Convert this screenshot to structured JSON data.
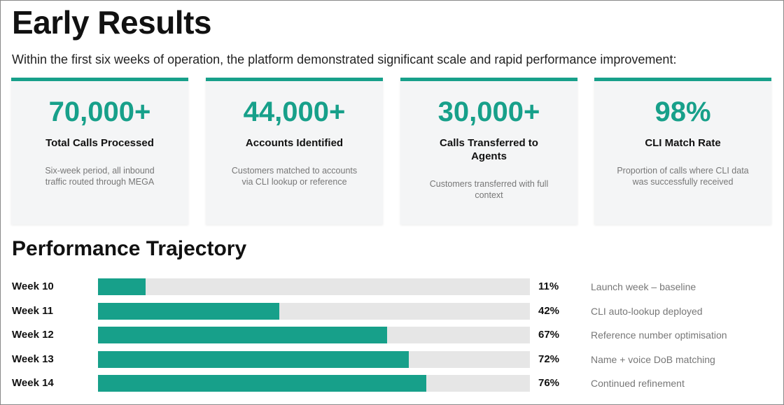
{
  "header": {
    "title": "Early Results",
    "intro": "Within the first six weeks of operation, the platform demonstrated significant scale and rapid performance improvement:"
  },
  "cards": [
    {
      "value": "70,000+",
      "label": "Total Calls Processed",
      "description": "Six-week period, all inbound traffic routed through MEGA"
    },
    {
      "value": "44,000+",
      "label": "Accounts Identified",
      "description": "Customers matched to accounts via CLI lookup or reference"
    },
    {
      "value": "30,000+",
      "label": "Calls Transferred to Agents",
      "description": "Customers transferred with full context"
    },
    {
      "value": "98%",
      "label": "CLI Match Rate",
      "description": "Proportion of calls where CLI data was successfully received"
    }
  ],
  "trajectory": {
    "title": "Performance Trajectory",
    "categories": [
      "Week 10",
      "Week 11",
      "Week 12",
      "Week 13",
      "Week 14"
    ],
    "values": [
      11,
      42,
      67,
      72,
      76
    ],
    "value_labels": [
      "11%",
      "42%",
      "67%",
      "72%",
      "76%"
    ],
    "notes": [
      "Launch week – baseline",
      "CLI auto-lookup deployed",
      "Reference number optimisation",
      "Name + voice DoB matching",
      "Continued refinement"
    ],
    "xlim": [
      0,
      100
    ]
  }
}
